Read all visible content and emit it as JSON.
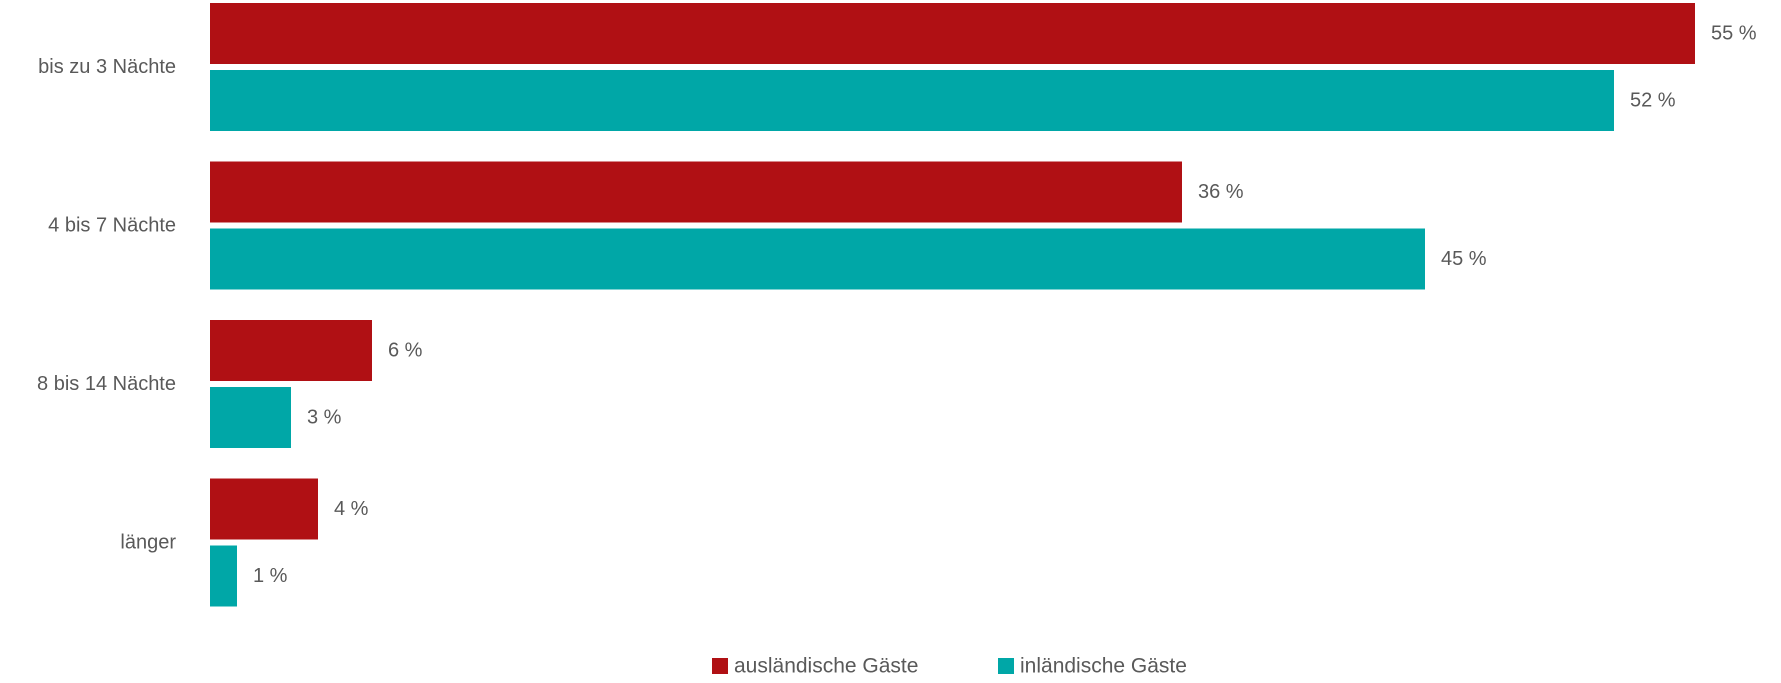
{
  "chart_data": {
    "type": "bar",
    "orientation": "horizontal",
    "categories": [
      "bis zu 3 Nächte",
      "4 bis 7 Nächte",
      "8 bis 14 Nächte",
      "länger"
    ],
    "series": [
      {
        "name": "ausländische Gäste",
        "color": "#b01014",
        "values": [
          55,
          36,
          6,
          4
        ],
        "labels": [
          "55 %",
          "36 %",
          "6 %",
          "4 %"
        ]
      },
      {
        "name": "inländische Gäste",
        "color": "#00a7a7",
        "values": [
          52,
          45,
          3,
          1
        ],
        "labels": [
          "52 %",
          "45 %",
          "3 %",
          "1 %"
        ]
      }
    ],
    "unit": "%",
    "xlim": [
      0,
      55
    ],
    "grid": false,
    "legend_position": "bottom-center"
  }
}
